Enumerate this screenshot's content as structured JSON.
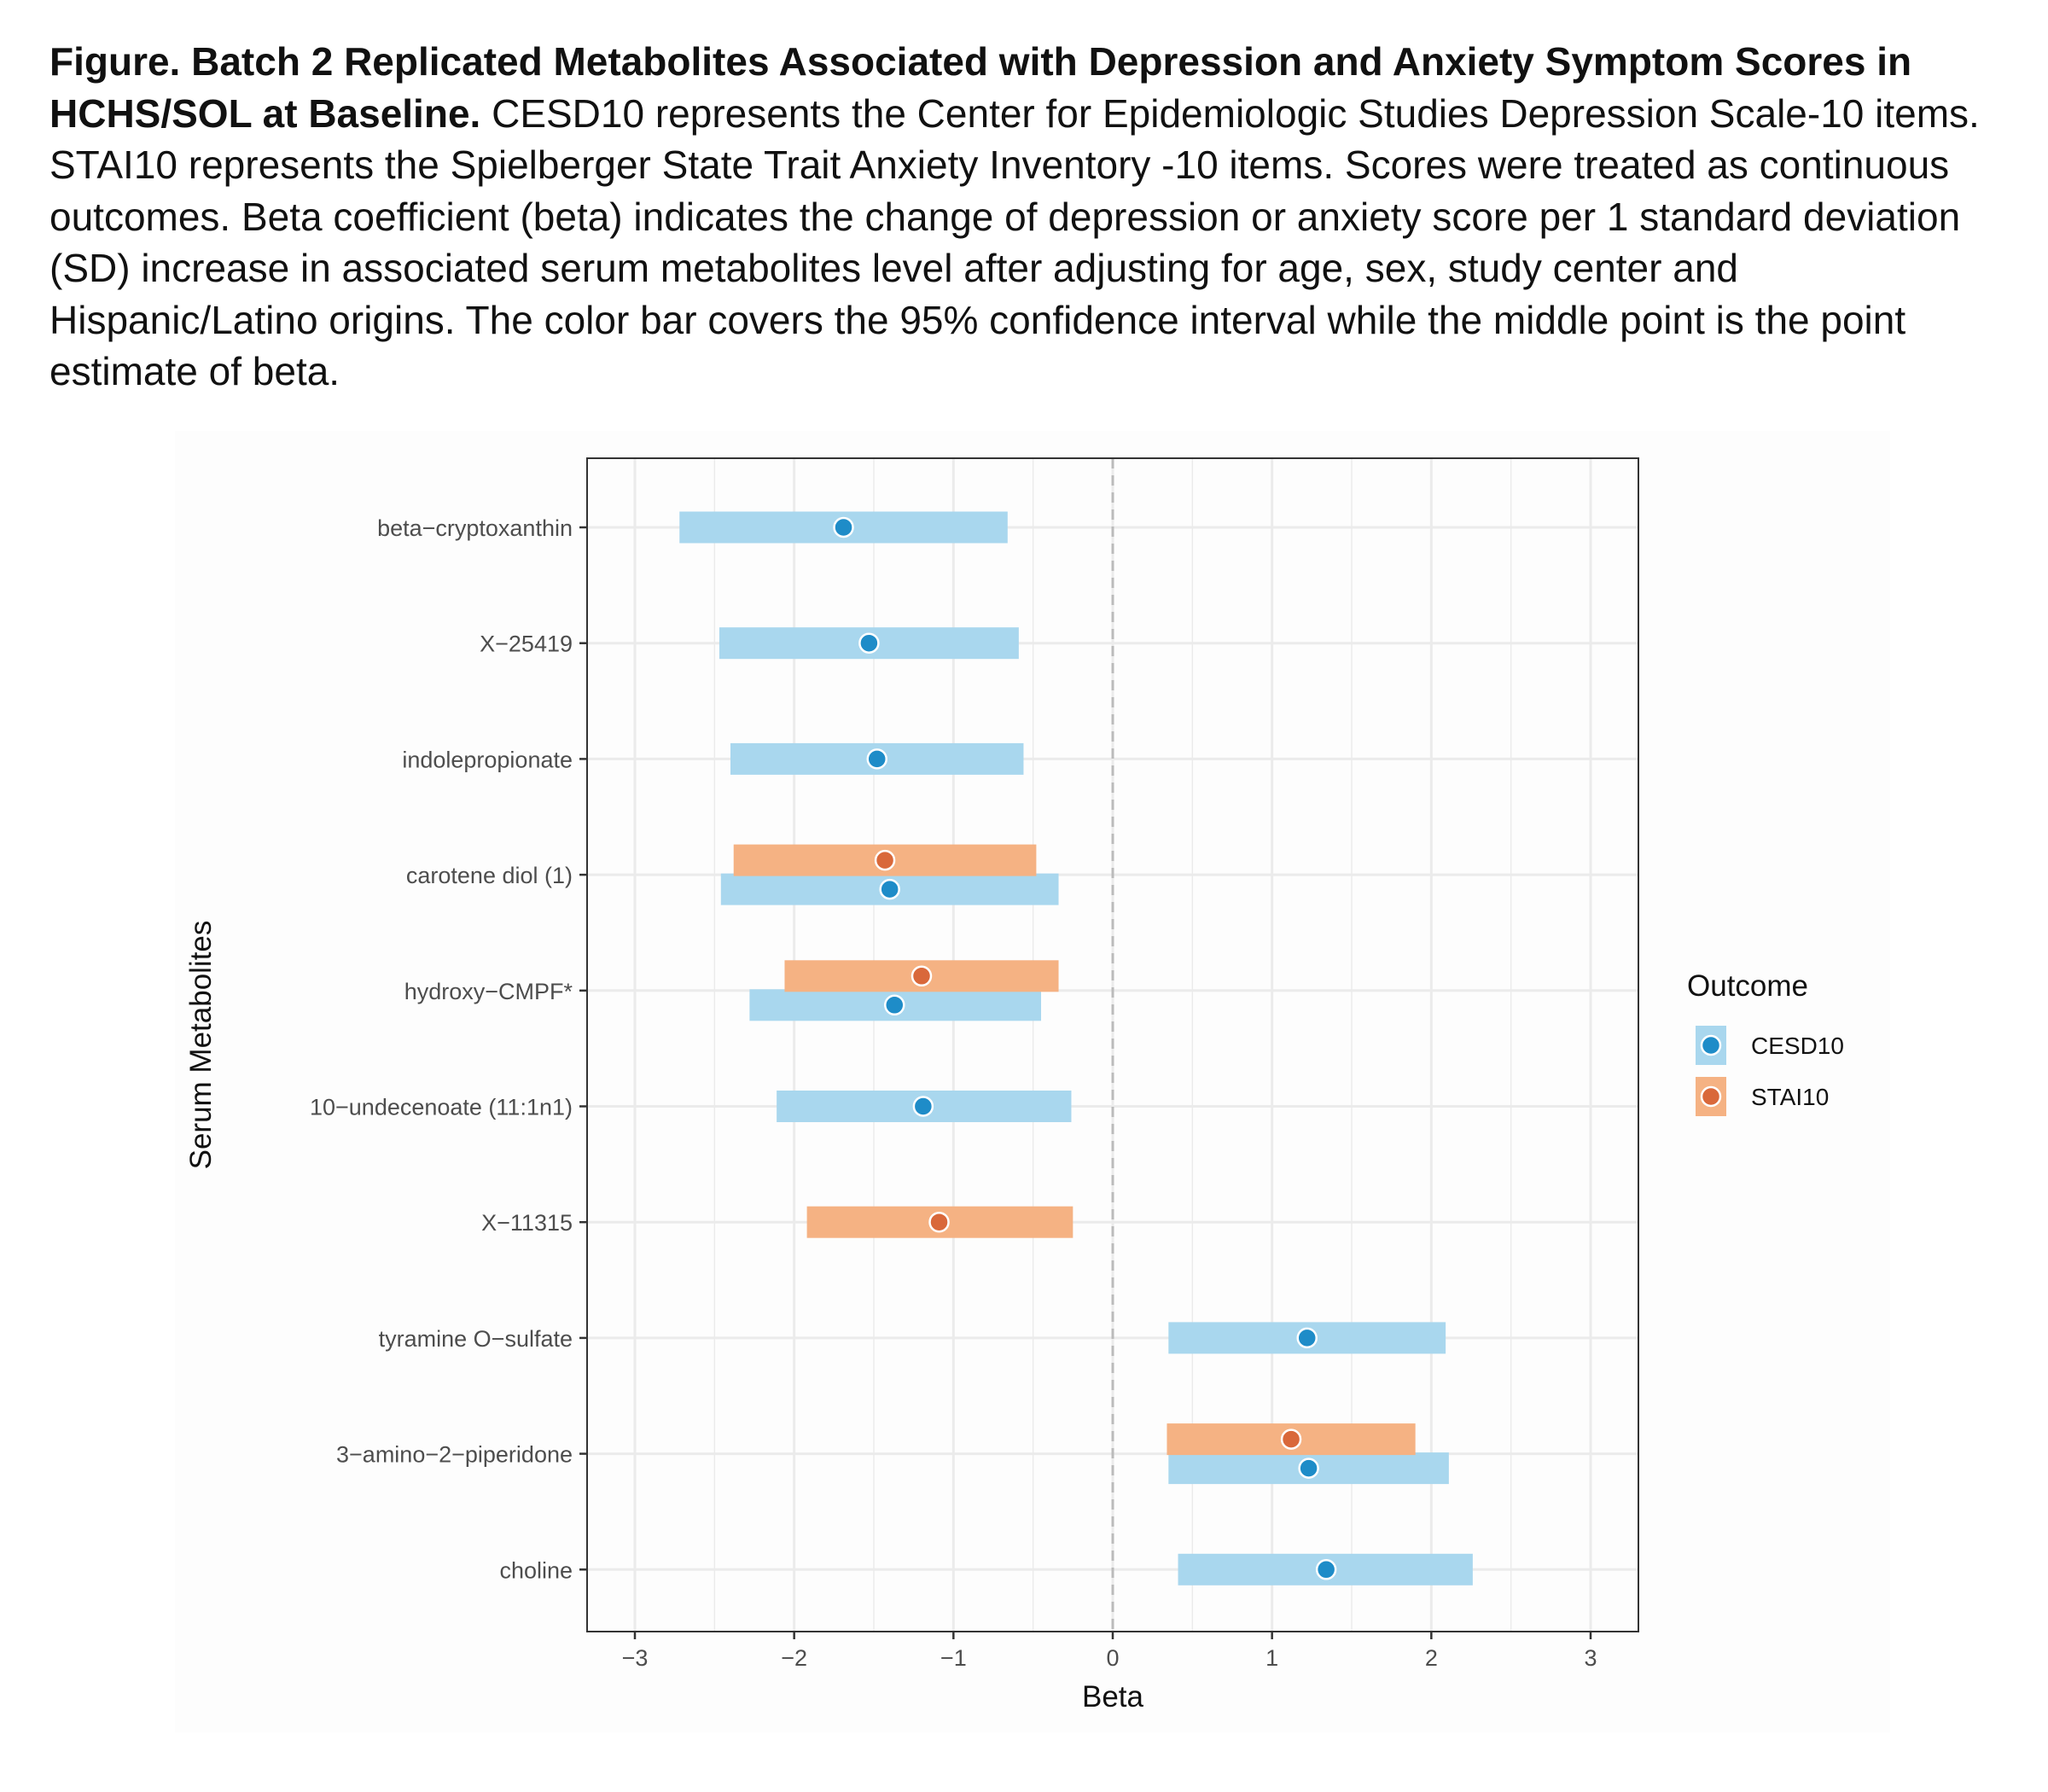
{
  "caption": {
    "bold": "Figure. Batch 2 Replicated Metabolites Associated with Depression and Anxiety Symptom Scores in HCHS/SOL at Baseline.",
    "text": " CESD10 represents the Center for Epidemiologic Studies Depression Scale-10 items. STAI10 represents the Spielberger State Trait Anxiety Inventory -10 items. Scores were treated as continuous outcomes. Beta coefficient (beta) indicates the change of depression or anxiety score per 1 standard deviation (SD) increase in associated serum metabolites level after adjusting for age, sex, study center and Hispanic/Latino origins. The color bar covers the 95% confidence interval while the middle point is the point estimate of beta."
  },
  "colors": {
    "CESD10_bar": "#a9d7ee",
    "CESD10_point": "#1e8cc8",
    "STAI10_bar": "#f5b283",
    "STAI10_point": "#d9683a",
    "zero_line": "#bbbbbb",
    "grid": "#ebebeb",
    "panel_border": "#333333"
  },
  "chart_data": {
    "type": "forest",
    "xlabel": "Beta",
    "ylabel": "Serum Metabolites",
    "xlim": [
      -3.3,
      3.3
    ],
    "x_ticks": [
      -3,
      -2,
      -1,
      0,
      1,
      2,
      3
    ],
    "x_tick_labels": [
      "−3",
      "−2",
      "−1",
      "0",
      "1",
      "2",
      "3"
    ],
    "grid": true,
    "reference_line": 0,
    "legend": {
      "title": "Outcome",
      "position": "right",
      "entries": [
        "CESD10",
        "STAI10"
      ]
    },
    "categories": [
      "beta−cryptoxanthin",
      "X−25419",
      "indolepropionate",
      "carotene diol (1)",
      "hydroxy−CMPF*",
      "10−undecenoate (11:1n1)",
      "X−11315",
      "tyramine O−sulfate",
      "3−amino−2−piperidone",
      "choline"
    ],
    "series": [
      {
        "name": "CESD10",
        "points": [
          {
            "category": "beta−cryptoxanthin",
            "beta": -1.69,
            "lower": -2.72,
            "upper": -0.66
          },
          {
            "category": "X−25419",
            "beta": -1.53,
            "lower": -2.47,
            "upper": -0.59
          },
          {
            "category": "indolepropionate",
            "beta": -1.48,
            "lower": -2.4,
            "upper": -0.56
          },
          {
            "category": "carotene diol (1)",
            "beta": -1.4,
            "lower": -2.46,
            "upper": -0.34
          },
          {
            "category": "hydroxy−CMPF*",
            "beta": -1.37,
            "lower": -2.28,
            "upper": -0.45
          },
          {
            "category": "10−undecenoate (11:1n1)",
            "beta": -1.19,
            "lower": -2.11,
            "upper": -0.26
          },
          {
            "category": "tyramine O−sulfate",
            "beta": 1.22,
            "lower": 0.35,
            "upper": 2.09
          },
          {
            "category": "3−amino−2−piperidone",
            "beta": 1.23,
            "lower": 0.35,
            "upper": 2.11
          },
          {
            "category": "choline",
            "beta": 1.34,
            "lower": 0.41,
            "upper": 2.26
          }
        ]
      },
      {
        "name": "STAI10",
        "points": [
          {
            "category": "carotene diol (1)",
            "beta": -1.43,
            "lower": -2.38,
            "upper": -0.48
          },
          {
            "category": "hydroxy−CMPF*",
            "beta": -1.2,
            "lower": -2.06,
            "upper": -0.34
          },
          {
            "category": "X−11315",
            "beta": -1.09,
            "lower": -1.92,
            "upper": -0.25
          },
          {
            "category": "3−amino−2−piperidone",
            "beta": 1.12,
            "lower": 0.34,
            "upper": 1.9
          }
        ]
      }
    ]
  }
}
